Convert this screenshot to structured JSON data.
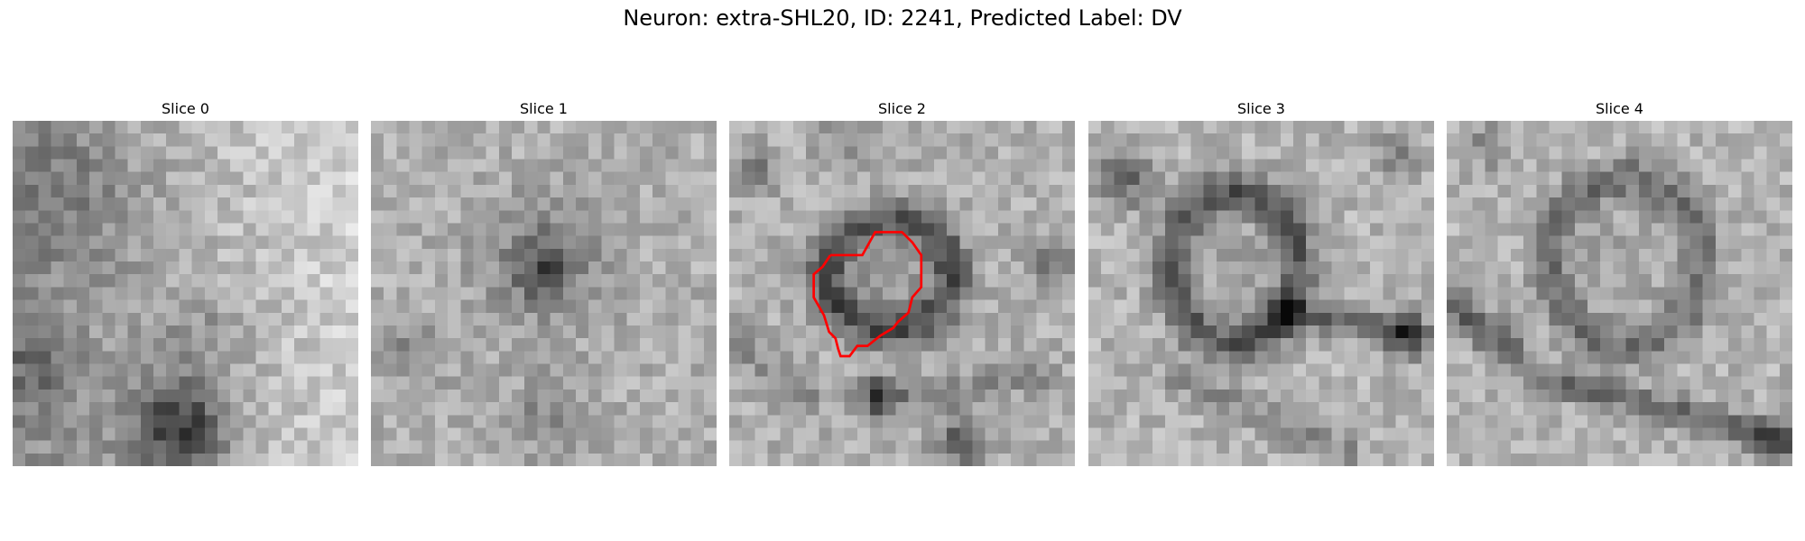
{
  "figure": {
    "title": "Neuron: extra-SHL20, ID: 2241, Predicted Label: DV"
  },
  "panels": [
    {
      "title": "Slice 0"
    },
    {
      "title": "Slice 1"
    },
    {
      "title": "Slice 2"
    },
    {
      "title": "Slice 3"
    },
    {
      "title": "Slice 4"
    }
  ],
  "colors": {
    "contour": "#ff0000",
    "background": "#ffffff"
  }
}
